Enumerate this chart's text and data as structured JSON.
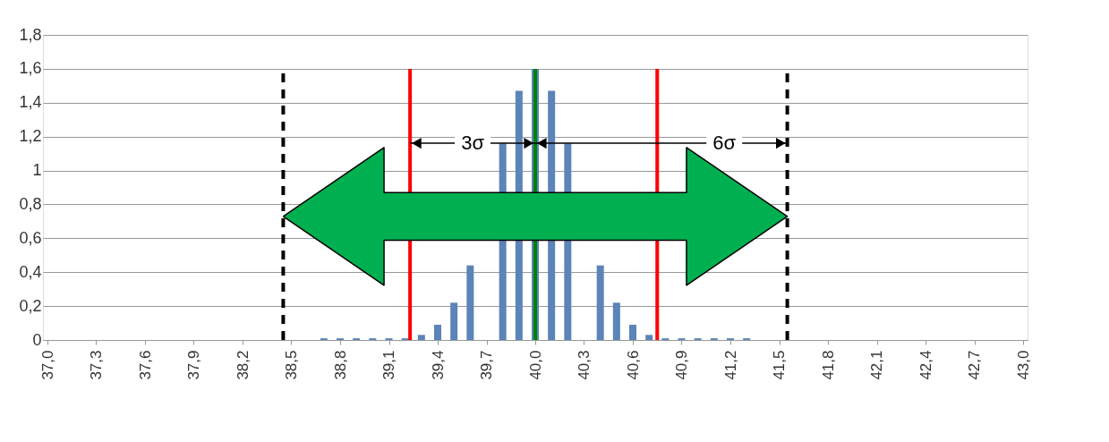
{
  "chart_data": {
    "type": "bar",
    "x": [
      38.7,
      38.8,
      38.9,
      39.0,
      39.1,
      39.2,
      39.3,
      39.4,
      39.5,
      39.6,
      39.7,
      39.8,
      39.9,
      40.0,
      40.1,
      40.2,
      40.3,
      40.4,
      40.5,
      40.6,
      40.7,
      40.8,
      40.9,
      41.0,
      41.1,
      41.2,
      41.3
    ],
    "values": [
      0.01,
      0.01,
      0.01,
      0.01,
      0.01,
      0.01,
      0.03,
      0.09,
      0.22,
      0.44,
      null,
      1.16,
      1.47,
      1.6,
      1.47,
      1.16,
      null,
      0.44,
      0.22,
      0.09,
      0.03,
      0.01,
      0.01,
      0.01,
      0.01,
      0.01,
      0.01
    ],
    "color": "#5b84b8",
    "xlim": [
      37.0,
      43.0
    ],
    "xticks": [
      {
        "value": 37.0,
        "label": "37,0"
      },
      {
        "value": 37.3,
        "label": "37,3"
      },
      {
        "value": 37.6,
        "label": "37,6"
      },
      {
        "value": 37.9,
        "label": "37,9"
      },
      {
        "value": 38.2,
        "label": "38,2"
      },
      {
        "value": 38.5,
        "label": "38,5"
      },
      {
        "value": 38.8,
        "label": "38,8"
      },
      {
        "value": 39.1,
        "label": "39,1"
      },
      {
        "value": 39.4,
        "label": "39,4"
      },
      {
        "value": 39.7,
        "label": "39,7"
      },
      {
        "value": 40.0,
        "label": "40,0"
      },
      {
        "value": 40.3,
        "label": "40,3"
      },
      {
        "value": 40.6,
        "label": "40,6"
      },
      {
        "value": 40.9,
        "label": "40,9"
      },
      {
        "value": 41.2,
        "label": "41,2"
      },
      {
        "value": 41.5,
        "label": "41,5"
      },
      {
        "value": 41.8,
        "label": "41,8"
      },
      {
        "value": 42.1,
        "label": "42,1"
      },
      {
        "value": 42.4,
        "label": "42,4"
      },
      {
        "value": 42.7,
        "label": "42,7"
      },
      {
        "value": 43.0,
        "label": "43,0"
      }
    ],
    "ylim": [
      0,
      1.8
    ],
    "yticks": [
      0,
      {
        "value": 0.2,
        "label": "0,2"
      },
      {
        "value": 0.4,
        "label": "0,4"
      },
      {
        "value": 0.6,
        "label": "0,6"
      },
      {
        "value": 0.8,
        "label": "0,8"
      },
      1,
      {
        "value": 1.2,
        "label": "1,2"
      },
      {
        "value": 1.4,
        "label": "1,4"
      },
      {
        "value": 1.6,
        "label": "1,6"
      },
      {
        "value": 1.8,
        "label": "1,8"
      }
    ],
    "grid": "y",
    "ref_lines": [
      {
        "axis": "x",
        "value": 38.45,
        "color": "#000000",
        "line_style": "dashed"
      },
      {
        "axis": "x",
        "value": 41.55,
        "color": "#000000",
        "line_style": "dashed"
      },
      {
        "axis": "x",
        "value": 39.23,
        "color": "#ff0000",
        "line_style": "solid"
      },
      {
        "axis": "x",
        "value": 40.75,
        "color": "#ff0000",
        "line_style": "solid"
      },
      {
        "axis": "x",
        "value": 40.0,
        "color": "#008000",
        "line_style": "solid"
      }
    ],
    "annotations": [
      "3σ",
      "6σ"
    ]
  }
}
